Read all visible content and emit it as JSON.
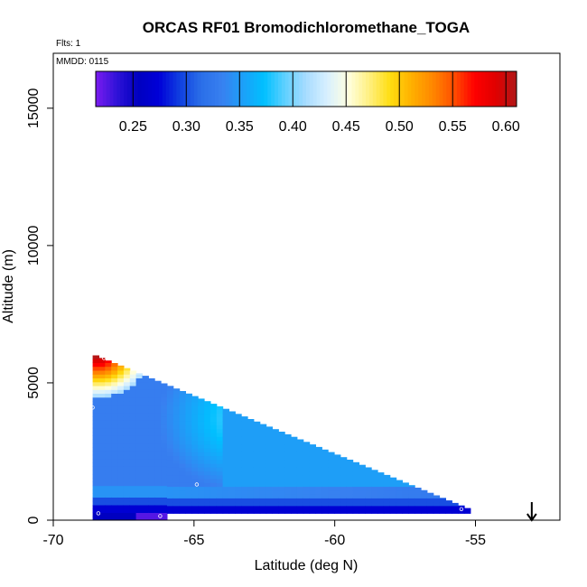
{
  "chart_data": {
    "type": "heatmap",
    "title": "ORCAS RF01 Bromodichloromethane_TOGA",
    "annotations": {
      "flights": "Flts: 1",
      "date": "MMDD: 0115"
    },
    "xlabel": "Latitude (deg N)",
    "ylabel": "Altitude (m)",
    "xlim": [
      -70,
      -52
    ],
    "ylim": [
      0,
      17000
    ],
    "x_ticks": [
      -70,
      -65,
      -60,
      -55
    ],
    "x_tick_labels": [
      "-70",
      "-65",
      "-60",
      "-55"
    ],
    "y_ticks": [
      0,
      5000,
      10000,
      15000
    ],
    "y_tick_labels": [
      "0",
      "5000",
      "10000",
      "15000"
    ],
    "colorbar": {
      "range": [
        0.215,
        0.61
      ],
      "ticks": [
        0.25,
        0.3,
        0.35,
        0.4,
        0.45,
        0.5,
        0.55,
        0.6
      ],
      "tick_labels": [
        "0.25",
        "0.30",
        "0.35",
        "0.40",
        "0.45",
        "0.50",
        "0.55",
        "0.60"
      ],
      "colors": [
        "#7b1cf0",
        "#2f12d8",
        "#0000c0",
        "#0000d8",
        "#1040e0",
        "#2a6ee8",
        "#3880f0",
        "#1ca0f8",
        "#00c0ff",
        "#60d0ff",
        "#a8dcff",
        "#d8f0ff",
        "#ffffe0",
        "#fff080",
        "#ffdd10",
        "#ffb000",
        "#ff8800",
        "#ff5000",
        "#ff0000",
        "#e00000",
        "#b01818"
      ]
    },
    "region": {
      "lat_min": -68.6,
      "lat_max": -55.3,
      "alt_max_at_lat_min": 6000,
      "alt_min_at_lat_max": 400
    },
    "sample_points": [
      {
        "lat": -68.2,
        "alt": 5900
      },
      {
        "lat": -65.0,
        "alt": 5600
      },
      {
        "lat": -68.6,
        "alt": 4100
      },
      {
        "lat": -64.9,
        "alt": 1300
      },
      {
        "lat": -68.4,
        "alt": 250
      },
      {
        "lat": -66.2,
        "alt": 150
      },
      {
        "lat": -55.5,
        "alt": 400
      }
    ],
    "arrow_marker": {
      "lat": -53.0,
      "direction": "down"
    }
  }
}
